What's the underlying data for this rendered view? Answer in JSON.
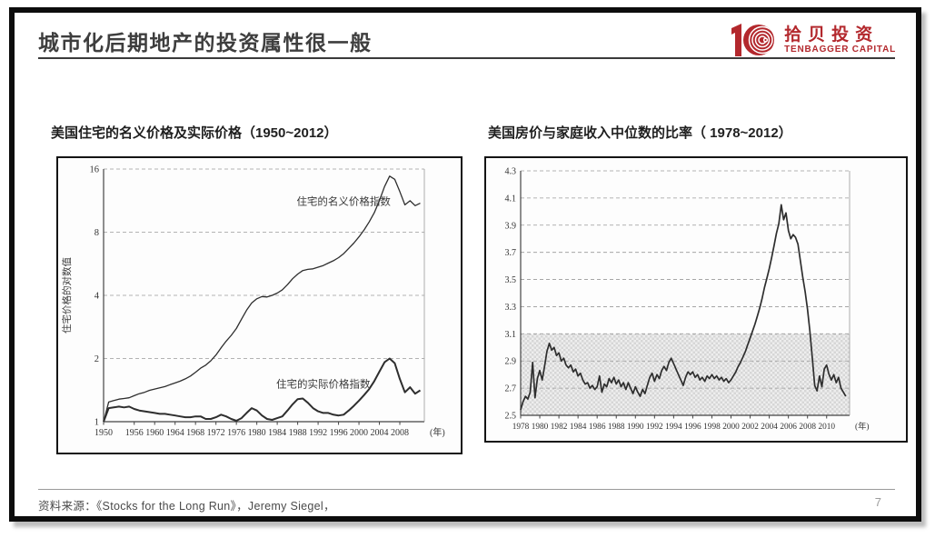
{
  "slide": {
    "title": "城市化后期地产的投资属性很一般",
    "page_number": "7",
    "source_note": "资料来源：《Stocks for the Long Run》，Jeremy Siegel，",
    "logo": {
      "cn": "拾贝投资",
      "en": "TENBAGGER CAPITAL",
      "color": "#b3282d"
    }
  },
  "chart_data": [
    {
      "type": "line",
      "title": "美国住宅的名义价格及实际价格（1950~2012）",
      "ylabel": "住宅价格的对数值",
      "xunit": "(年)",
      "yscale": "log2",
      "ylim": [
        1,
        16
      ],
      "yticks": [
        1,
        2,
        4,
        8,
        16
      ],
      "xlim": [
        1950,
        2012.8
      ],
      "xticks": [
        1950,
        1956,
        1960,
        1964,
        1968,
        1972,
        1976,
        1980,
        1984,
        1988,
        1992,
        1996,
        2000,
        2004,
        2008
      ],
      "x_start": 1950,
      "x_step": 1,
      "grid": "dashed-horizontal",
      "legend": "in-plot annotations",
      "line_color": "#2e2e2e",
      "series": [
        {
          "name": "住宅的名义价格指数",
          "values": [
            1.0,
            1.24,
            1.26,
            1.28,
            1.29,
            1.3,
            1.33,
            1.36,
            1.38,
            1.41,
            1.43,
            1.45,
            1.47,
            1.5,
            1.53,
            1.56,
            1.6,
            1.65,
            1.72,
            1.8,
            1.86,
            1.95,
            2.08,
            2.25,
            2.42,
            2.58,
            2.78,
            3.08,
            3.4,
            3.68,
            3.85,
            3.95,
            3.93,
            4.0,
            4.1,
            4.25,
            4.5,
            4.8,
            5.05,
            5.25,
            5.32,
            5.35,
            5.45,
            5.55,
            5.7,
            5.85,
            6.05,
            6.32,
            6.7,
            7.1,
            7.6,
            8.2,
            8.95,
            9.9,
            11.3,
            13.2,
            14.8,
            14.3,
            12.5,
            10.8,
            11.3,
            10.7,
            11.0
          ]
        },
        {
          "name": "住宅的实际价格指数",
          "values": [
            1.0,
            1.16,
            1.17,
            1.18,
            1.17,
            1.18,
            1.15,
            1.13,
            1.12,
            1.11,
            1.1,
            1.09,
            1.09,
            1.08,
            1.07,
            1.06,
            1.05,
            1.05,
            1.06,
            1.06,
            1.03,
            1.03,
            1.05,
            1.08,
            1.06,
            1.03,
            1.01,
            1.04,
            1.1,
            1.16,
            1.13,
            1.07,
            1.03,
            1.02,
            1.04,
            1.06,
            1.13,
            1.21,
            1.28,
            1.29,
            1.23,
            1.16,
            1.12,
            1.1,
            1.1,
            1.08,
            1.07,
            1.08,
            1.13,
            1.19,
            1.26,
            1.34,
            1.43,
            1.56,
            1.73,
            1.92,
            2.0,
            1.9,
            1.6,
            1.38,
            1.46,
            1.36,
            1.41
          ]
        }
      ],
      "annotations": [
        {
          "text": "住宅的名义价格指数",
          "year": 1997,
          "value": 10.8
        },
        {
          "text": "住宅的实际价格指数",
          "year": 1993,
          "value": 1.45
        }
      ]
    },
    {
      "type": "line",
      "title": "美国房价与家庭收入中位数的比率（ 1978~2012）",
      "ylabel": "",
      "xunit": "(年)",
      "yscale": "linear",
      "ylim": [
        2.5,
        4.3
      ],
      "yticks": [
        2.5,
        2.7,
        2.9,
        3.1,
        3.3,
        3.5,
        3.7,
        3.9,
        4.1,
        4.3
      ],
      "xlim": [
        1978,
        2012.4
      ],
      "xticks": [
        1978,
        1980,
        1982,
        1984,
        1986,
        1988,
        1990,
        1992,
        1994,
        1996,
        1998,
        2000,
        2002,
        2004,
        2006,
        2008,
        2010
      ],
      "x_start": 1978,
      "x_step": 0.25,
      "grid": "dashed-horizontal",
      "band": {
        "from": 2.5,
        "to": 3.1,
        "style": "hatched-gray"
      },
      "line_color": "#2e2e2e",
      "series": [
        {
          "name": "",
          "values": [
            2.54,
            2.6,
            2.64,
            2.62,
            2.67,
            2.89,
            2.63,
            2.77,
            2.83,
            2.76,
            2.86,
            2.97,
            3.03,
            2.98,
            3.0,
            2.94,
            2.96,
            2.9,
            2.92,
            2.87,
            2.85,
            2.87,
            2.82,
            2.84,
            2.79,
            2.81,
            2.76,
            2.73,
            2.74,
            2.7,
            2.72,
            2.69,
            2.71,
            2.79,
            2.67,
            2.73,
            2.71,
            2.77,
            2.74,
            2.78,
            2.73,
            2.76,
            2.71,
            2.74,
            2.69,
            2.74,
            2.7,
            2.66,
            2.71,
            2.67,
            2.64,
            2.69,
            2.66,
            2.72,
            2.78,
            2.81,
            2.75,
            2.8,
            2.77,
            2.83,
            2.86,
            2.83,
            2.89,
            2.92,
            2.88,
            2.84,
            2.8,
            2.76,
            2.72,
            2.78,
            2.82,
            2.8,
            2.82,
            2.78,
            2.8,
            2.76,
            2.78,
            2.75,
            2.79,
            2.77,
            2.8,
            2.77,
            2.79,
            2.76,
            2.78,
            2.75,
            2.77,
            2.74,
            2.76,
            2.79,
            2.82,
            2.86,
            2.89,
            2.93,
            2.97,
            3.02,
            3.07,
            3.12,
            3.17,
            3.23,
            3.29,
            3.36,
            3.44,
            3.51,
            3.58,
            3.66,
            3.75,
            3.84,
            3.91,
            4.05,
            3.94,
            3.99,
            3.86,
            3.8,
            3.83,
            3.81,
            3.76,
            3.64,
            3.52,
            3.41,
            3.28,
            3.12,
            2.92,
            2.72,
            2.68,
            2.79,
            2.71,
            2.84,
            2.87,
            2.8,
            2.76,
            2.8,
            2.74,
            2.78,
            2.7,
            2.67,
            2.64
          ]
        }
      ],
      "annotations": []
    }
  ]
}
